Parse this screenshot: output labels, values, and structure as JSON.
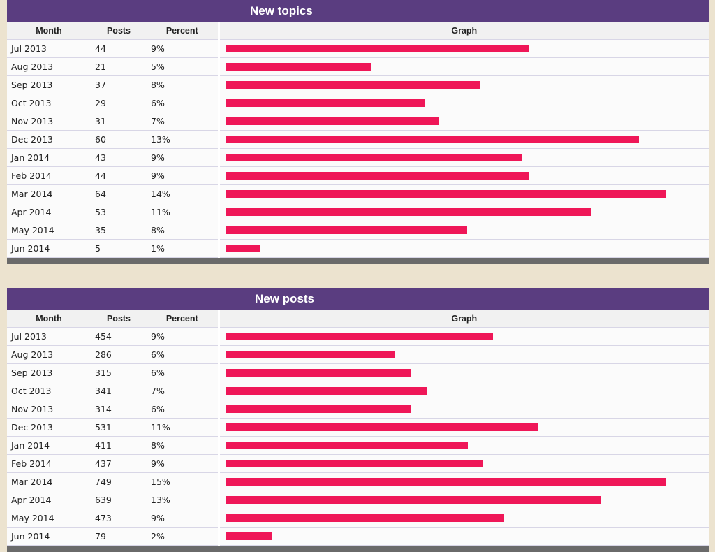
{
  "colors": {
    "header_bg": "#5a3d80",
    "bar": "#ef1758",
    "page_bg": "#ece3cf",
    "footer": "#6a6a6a"
  },
  "columns": {
    "month": "Month",
    "posts": "Posts",
    "percent": "Percent",
    "graph": "Graph"
  },
  "topics": {
    "title": "New topics",
    "max_posts": 64,
    "rows": [
      {
        "month": "Jul 2013",
        "posts": "44",
        "percent": "9%"
      },
      {
        "month": "Aug 2013",
        "posts": "21",
        "percent": "5%"
      },
      {
        "month": "Sep 2013",
        "posts": "37",
        "percent": "8%"
      },
      {
        "month": "Oct 2013",
        "posts": "29",
        "percent": "6%"
      },
      {
        "month": "Nov 2013",
        "posts": "31",
        "percent": "7%"
      },
      {
        "month": "Dec 2013",
        "posts": "60",
        "percent": "13%"
      },
      {
        "month": "Jan 2014",
        "posts": "43",
        "percent": "9%"
      },
      {
        "month": "Feb 2014",
        "posts": "44",
        "percent": "9%"
      },
      {
        "month": "Mar 2014",
        "posts": "64",
        "percent": "14%"
      },
      {
        "month": "Apr 2014",
        "posts": "53",
        "percent": "11%"
      },
      {
        "month": "May 2014",
        "posts": "35",
        "percent": "8%"
      },
      {
        "month": "Jun 2014",
        "posts": "5",
        "percent": "1%"
      }
    ]
  },
  "posts": {
    "title": "New posts",
    "max_posts": 749,
    "rows": [
      {
        "month": "Jul 2013",
        "posts": "454",
        "percent": "9%"
      },
      {
        "month": "Aug 2013",
        "posts": "286",
        "percent": "6%"
      },
      {
        "month": "Sep 2013",
        "posts": "315",
        "percent": "6%"
      },
      {
        "month": "Oct 2013",
        "posts": "341",
        "percent": "7%"
      },
      {
        "month": "Nov 2013",
        "posts": "314",
        "percent": "6%"
      },
      {
        "month": "Dec 2013",
        "posts": "531",
        "percent": "11%"
      },
      {
        "month": "Jan 2014",
        "posts": "411",
        "percent": "8%"
      },
      {
        "month": "Feb 2014",
        "posts": "437",
        "percent": "9%"
      },
      {
        "month": "Mar 2014",
        "posts": "749",
        "percent": "15%"
      },
      {
        "month": "Apr 2014",
        "posts": "639",
        "percent": "13%"
      },
      {
        "month": "May 2014",
        "posts": "473",
        "percent": "9%"
      },
      {
        "month": "Jun 2014",
        "posts": "79",
        "percent": "2%"
      }
    ]
  }
}
